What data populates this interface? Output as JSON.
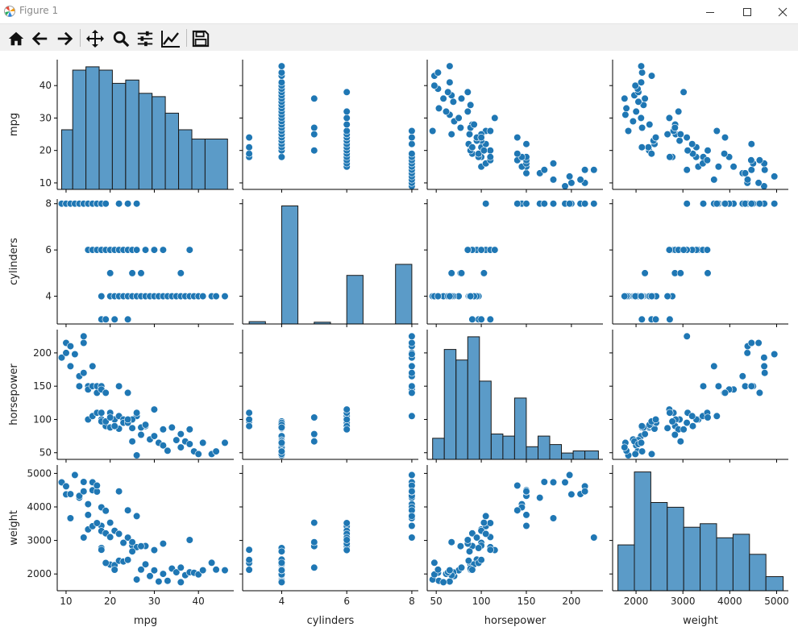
{
  "window": {
    "title": "Figure 1",
    "icons": [
      "matplotlib-logo-icon",
      "minimize-icon",
      "maximize-icon",
      "close-icon"
    ]
  },
  "toolbar": {
    "buttons": [
      {
        "name": "home",
        "icon": "home-icon"
      },
      {
        "name": "back",
        "icon": "back-arrow-icon"
      },
      {
        "name": "forward",
        "icon": "forward-arrow-icon"
      },
      {
        "name": "pan",
        "icon": "pan-move-icon"
      },
      {
        "name": "zoom",
        "icon": "zoom-magnifier-icon"
      },
      {
        "name": "subplots",
        "icon": "configure-subplots-icon"
      },
      {
        "name": "customize",
        "icon": "edit-axis-icon"
      },
      {
        "name": "save",
        "icon": "save-floppy-icon"
      }
    ]
  },
  "chart_data": {
    "type": "pairplot",
    "variables": [
      "mpg",
      "cylinders",
      "horsepower",
      "weight"
    ],
    "colors": {
      "marker": "#1f77b4",
      "bar": "#5b9bc8",
      "edge": "#1a1a1a",
      "point_edge": "#ffffff"
    },
    "grid": false,
    "axes": {
      "mpg": {
        "label": "mpg",
        "range": [
          8,
          48
        ],
        "ticks": [
          10,
          20,
          30,
          40
        ]
      },
      "cylinders": {
        "label": "cylinders",
        "range": [
          2.8,
          8.2
        ],
        "ticks": [
          4,
          6,
          8
        ]
      },
      "horsepower": {
        "label": "horsepower",
        "range": [
          40,
          235
        ],
        "ticks": [
          50,
          100,
          150,
          200
        ]
      },
      "weight": {
        "label": "weight",
        "range": [
          1500,
          5250
        ],
        "ticks": [
          2000,
          3000,
          4000,
          5000
        ]
      }
    },
    "histograms": {
      "mpg": {
        "bins": [
          [
            9,
            11.5,
            9
          ],
          [
            11.5,
            14.5,
            18
          ],
          [
            14.5,
            17.5,
            18.5
          ],
          [
            17.5,
            20.5,
            18
          ],
          [
            20.5,
            23.5,
            16
          ],
          [
            23.5,
            26.5,
            16.5
          ],
          [
            26.5,
            29.5,
            14.5
          ],
          [
            29.5,
            32.5,
            14
          ],
          [
            32.5,
            35.5,
            11.5
          ],
          [
            35.5,
            38.5,
            9
          ],
          [
            38.5,
            41.5,
            7.6
          ],
          [
            41.5,
            46.6,
            7.6
          ]
        ]
      },
      "cylinders": {
        "bins": [
          [
            3,
            3.5,
            4
          ],
          [
            4,
            4.5,
            204
          ],
          [
            5,
            5.5,
            3
          ],
          [
            6,
            6.5,
            84
          ],
          [
            7.5,
            8,
            103
          ]
        ]
      },
      "horsepower": {
        "bins": [
          [
            46,
            59,
            10
          ],
          [
            59,
            72,
            52
          ],
          [
            72,
            85,
            47
          ],
          [
            85,
            98,
            58
          ],
          [
            98,
            111,
            37
          ],
          [
            111,
            124,
            12
          ],
          [
            124,
            137,
            11
          ],
          [
            137,
            150,
            29
          ],
          [
            150,
            163,
            6
          ],
          [
            163,
            176,
            11
          ],
          [
            176,
            189,
            7
          ],
          [
            189,
            202,
            3
          ],
          [
            202,
            215,
            4
          ],
          [
            215,
            230,
            4
          ]
        ]
      },
      "weight": {
        "bins": [
          [
            1613,
            1964,
            39
          ],
          [
            1964,
            2315,
            101
          ],
          [
            2315,
            2666,
            75
          ],
          [
            2666,
            3017,
            71
          ],
          [
            3017,
            3368,
            54
          ],
          [
            3368,
            3719,
            57
          ],
          [
            3719,
            4070,
            45
          ],
          [
            4070,
            4421,
            48
          ],
          [
            4421,
            4772,
            31
          ],
          [
            4772,
            5140,
            12
          ]
        ]
      }
    },
    "scatter_sample": [
      [
        9,
        8,
        193,
        4732
      ],
      [
        10,
        8,
        215,
        4615
      ],
      [
        10,
        8,
        200,
        4376
      ],
      [
        11,
        8,
        210,
        4382
      ],
      [
        11,
        8,
        180,
        3664
      ],
      [
        12,
        8,
        198,
        4952
      ],
      [
        13,
        8,
        165,
        4274
      ],
      [
        13,
        8,
        150,
        4330
      ],
      [
        14,
        8,
        225,
        3086
      ],
      [
        14,
        8,
        215,
        4464
      ],
      [
        14,
        8,
        170,
        4746
      ],
      [
        15,
        8,
        150,
        3761
      ],
      [
        15,
        8,
        145,
        4082
      ],
      [
        16,
        8,
        150,
        4498
      ],
      [
        16,
        8,
        180,
        4735
      ],
      [
        17,
        8,
        150,
        4457
      ],
      [
        17,
        8,
        140,
        4638
      ],
      [
        18,
        8,
        150,
        3436
      ],
      [
        18,
        8,
        145,
        3988
      ],
      [
        19,
        8,
        140,
        3885
      ],
      [
        22,
        8,
        150,
        4464
      ],
      [
        24,
        8,
        140,
        3900
      ],
      [
        26,
        8,
        105,
        3725
      ],
      [
        15,
        6,
        100,
        3329
      ],
      [
        16,
        6,
        105,
        3425
      ],
      [
        17,
        6,
        110,
        3520
      ],
      [
        18,
        6,
        100,
        3282
      ],
      [
        19,
        6,
        90,
        3211
      ],
      [
        20,
        6,
        110,
        3102
      ],
      [
        21,
        6,
        100,
        3288
      ],
      [
        22,
        6,
        105,
        3198
      ],
      [
        23,
        6,
        100,
        2930
      ],
      [
        24,
        6,
        95,
        3085
      ],
      [
        25,
        6,
        100,
        2845
      ],
      [
        26,
        6,
        110,
        2800
      ],
      [
        28,
        6,
        90,
        2835
      ],
      [
        30,
        6,
        115,
        2711
      ],
      [
        32,
        6,
        85,
        2905
      ],
      [
        38,
        6,
        85,
        3015
      ],
      [
        18,
        4,
        97,
        2774
      ],
      [
        20,
        4,
        88,
        2279
      ],
      [
        21,
        4,
        90,
        2264
      ],
      [
        22,
        4,
        86,
        2395
      ],
      [
        23,
        4,
        95,
        2372
      ],
      [
        24,
        4,
        95,
        2430
      ],
      [
        25,
        4,
        87,
        2672
      ],
      [
        26,
        4,
        46,
        1835
      ],
      [
        27,
        4,
        88,
        2130
      ],
      [
        28,
        4,
        92,
        2288
      ],
      [
        29,
        4,
        70,
        1937
      ],
      [
        30,
        4,
        75,
        2108
      ],
      [
        31,
        4,
        65,
        1773
      ],
      [
        32,
        4,
        61,
        2003
      ],
      [
        33,
        4,
        53,
        1795
      ],
      [
        34,
        4,
        88,
        2160
      ],
      [
        35,
        4,
        69,
        2050
      ],
      [
        36,
        4,
        58,
        1755
      ],
      [
        37,
        4,
        67,
        1965
      ],
      [
        38,
        4,
        63,
        2051
      ],
      [
        39,
        4,
        52,
        2035
      ],
      [
        40,
        4,
        48,
        1985
      ],
      [
        41,
        4,
        65,
        2110
      ],
      [
        43,
        4,
        48,
        2335
      ],
      [
        44,
        4,
        52,
        2130
      ],
      [
        46,
        4,
        65,
        2110
      ],
      [
        18,
        3,
        110,
        2720
      ],
      [
        19,
        3,
        97,
        2330
      ],
      [
        21,
        3,
        90,
        2124
      ],
      [
        24,
        3,
        100,
        2420
      ],
      [
        27,
        5,
        77,
        2830
      ],
      [
        25,
        5,
        67,
        2950
      ],
      [
        20,
        5,
        103,
        3530
      ],
      [
        36,
        5,
        78,
        2190
      ]
    ]
  }
}
